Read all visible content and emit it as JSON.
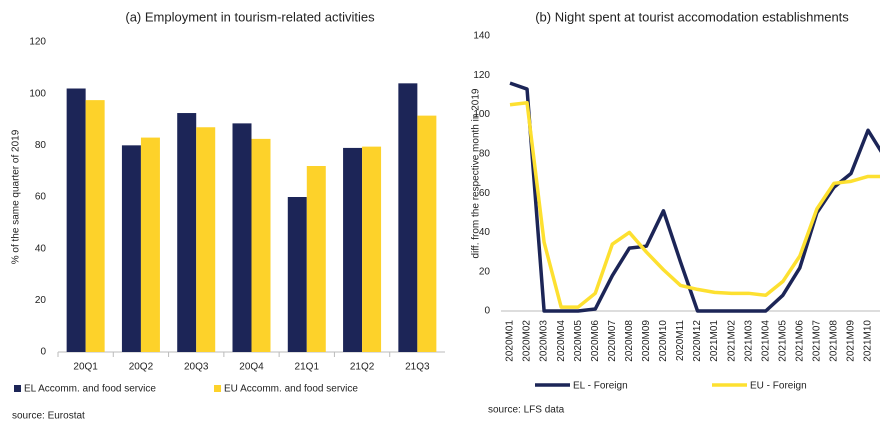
{
  "chart_data": [
    {
      "type": "bar",
      "title": "(a) Employment in tourism-related activities",
      "y_label": "% of the same quarter of 2019",
      "categories": [
        "20Q1",
        "20Q2",
        "20Q3",
        "20Q4",
        "21Q1",
        "21Q2",
        "21Q3"
      ],
      "series": [
        {
          "name": "EL Accomm. and food service",
          "color": "#1c2557",
          "values": [
            102,
            80,
            92.5,
            88.5,
            60,
            79,
            104
          ]
        },
        {
          "name": "EU Accomm. and food service",
          "color": "#fdd22a",
          "values": [
            97.5,
            83,
            87,
            82.5,
            72,
            79.5,
            91.5
          ]
        }
      ],
      "ylim": [
        0,
        120
      ],
      "yticks": [
        0,
        20,
        40,
        60,
        80,
        100,
        120
      ],
      "grid": false,
      "source": "source: Eurostat"
    },
    {
      "type": "line",
      "title": "(b) Night spent at tourist accomodation establishments",
      "y_label": "diff. from the respective month in 2019",
      "categories": [
        "2020M01",
        "2020M02",
        "2020M03",
        "2020M04",
        "2020M05",
        "2020M06",
        "2020M07",
        "2020M08",
        "2020M09",
        "2020M10",
        "2020M11",
        "2020M12",
        "2021M01",
        "2021M02",
        "2021M03",
        "2021M04",
        "2021M05",
        "2021M06",
        "2021M07",
        "2021M08",
        "2021M09",
        "2021M10",
        null
      ],
      "series": [
        {
          "name": "EL - Foreign",
          "color": "#1c2557",
          "values": [
            116,
            113,
            0,
            0,
            0,
            1,
            18,
            32,
            33,
            51,
            25,
            0,
            0,
            0,
            0,
            0,
            8,
            22,
            50,
            63,
            70,
            92,
            78
          ]
        },
        {
          "name": "EU - Foreign",
          "color": "#fde030",
          "values": [
            105,
            106,
            35,
            2,
            2,
            9,
            34,
            40,
            30,
            21,
            13,
            11,
            9.5,
            9,
            9,
            8,
            15,
            28,
            52,
            65,
            66,
            68.5,
            68.5
          ]
        }
      ],
      "ylim": [
        0,
        140
      ],
      "yticks": [
        0,
        20,
        40,
        60,
        80,
        100,
        120,
        140
      ],
      "grid": false,
      "source": "source: LFS data"
    }
  ]
}
